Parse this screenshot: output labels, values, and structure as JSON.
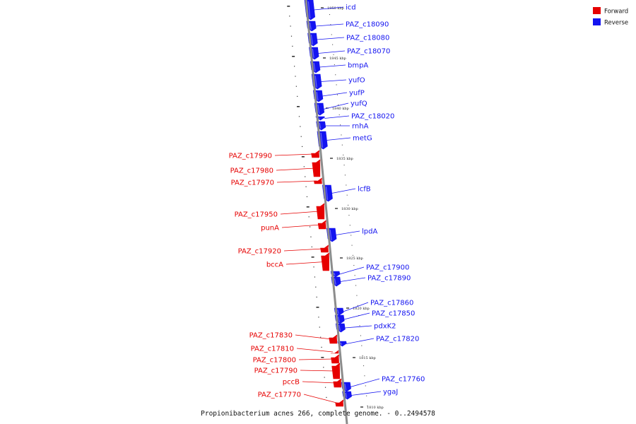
{
  "colors": {
    "forward": "#e60000",
    "reverse": "#1414f0",
    "backbone": "#8c8c8c"
  },
  "legend": [
    {
      "label": "Forward",
      "strand": "forward"
    },
    {
      "label": "Reverse",
      "strand": "reverse"
    }
  ],
  "caption": "Propionibacterium acnes 266, complete genome. - 0..2494578",
  "scale_labels": [
    "1850 kbp",
    "1845 kbp",
    "1840 kbp",
    "1835 kbp",
    "1830 kbp",
    "1825 kbp",
    "1820 kbp",
    "1815 kbp",
    "1810 kbp"
  ],
  "genes": [
    {
      "name": "icd",
      "strand": "reverse"
    },
    {
      "name": "PAZ_c18090",
      "strand": "reverse"
    },
    {
      "name": "PAZ_c18080",
      "strand": "reverse"
    },
    {
      "name": "PAZ_c18070",
      "strand": "reverse"
    },
    {
      "name": "bmpA",
      "strand": "reverse"
    },
    {
      "name": "yufO",
      "strand": "reverse"
    },
    {
      "name": "yufP",
      "strand": "reverse"
    },
    {
      "name": "yufQ",
      "strand": "reverse"
    },
    {
      "name": "PAZ_c18020",
      "strand": "reverse"
    },
    {
      "name": "rnhA",
      "strand": "reverse"
    },
    {
      "name": "metG",
      "strand": "reverse"
    },
    {
      "name": "PAZ_c17990",
      "strand": "forward"
    },
    {
      "name": "PAZ_c17980",
      "strand": "forward"
    },
    {
      "name": "PAZ_c17970",
      "strand": "forward"
    },
    {
      "name": "lcfB",
      "strand": "reverse"
    },
    {
      "name": "PAZ_c17950",
      "strand": "forward"
    },
    {
      "name": "punA",
      "strand": "forward"
    },
    {
      "name": "lpdA",
      "strand": "reverse"
    },
    {
      "name": "PAZ_c17920",
      "strand": "forward"
    },
    {
      "name": "bccA",
      "strand": "forward"
    },
    {
      "name": "PAZ_c17900",
      "strand": "reverse"
    },
    {
      "name": "PAZ_c17890",
      "strand": "reverse"
    },
    {
      "name": "PAZ_c17860",
      "strand": "reverse"
    },
    {
      "name": "PAZ_c17850",
      "strand": "reverse"
    },
    {
      "name": "pdxK2",
      "strand": "reverse"
    },
    {
      "name": "PAZ_c17820",
      "strand": "reverse"
    },
    {
      "name": "PAZ_c17830",
      "strand": "forward"
    },
    {
      "name": "PAZ_c17810",
      "strand": "forward"
    },
    {
      "name": "PAZ_c17800",
      "strand": "forward"
    },
    {
      "name": "PAZ_c17790",
      "strand": "forward"
    },
    {
      "name": "pccB",
      "strand": "forward"
    },
    {
      "name": "PAZ_c17770",
      "strand": "forward"
    },
    {
      "name": "PAZ_c17760",
      "strand": "reverse"
    },
    {
      "name": "ygaJ",
      "strand": "reverse"
    }
  ]
}
